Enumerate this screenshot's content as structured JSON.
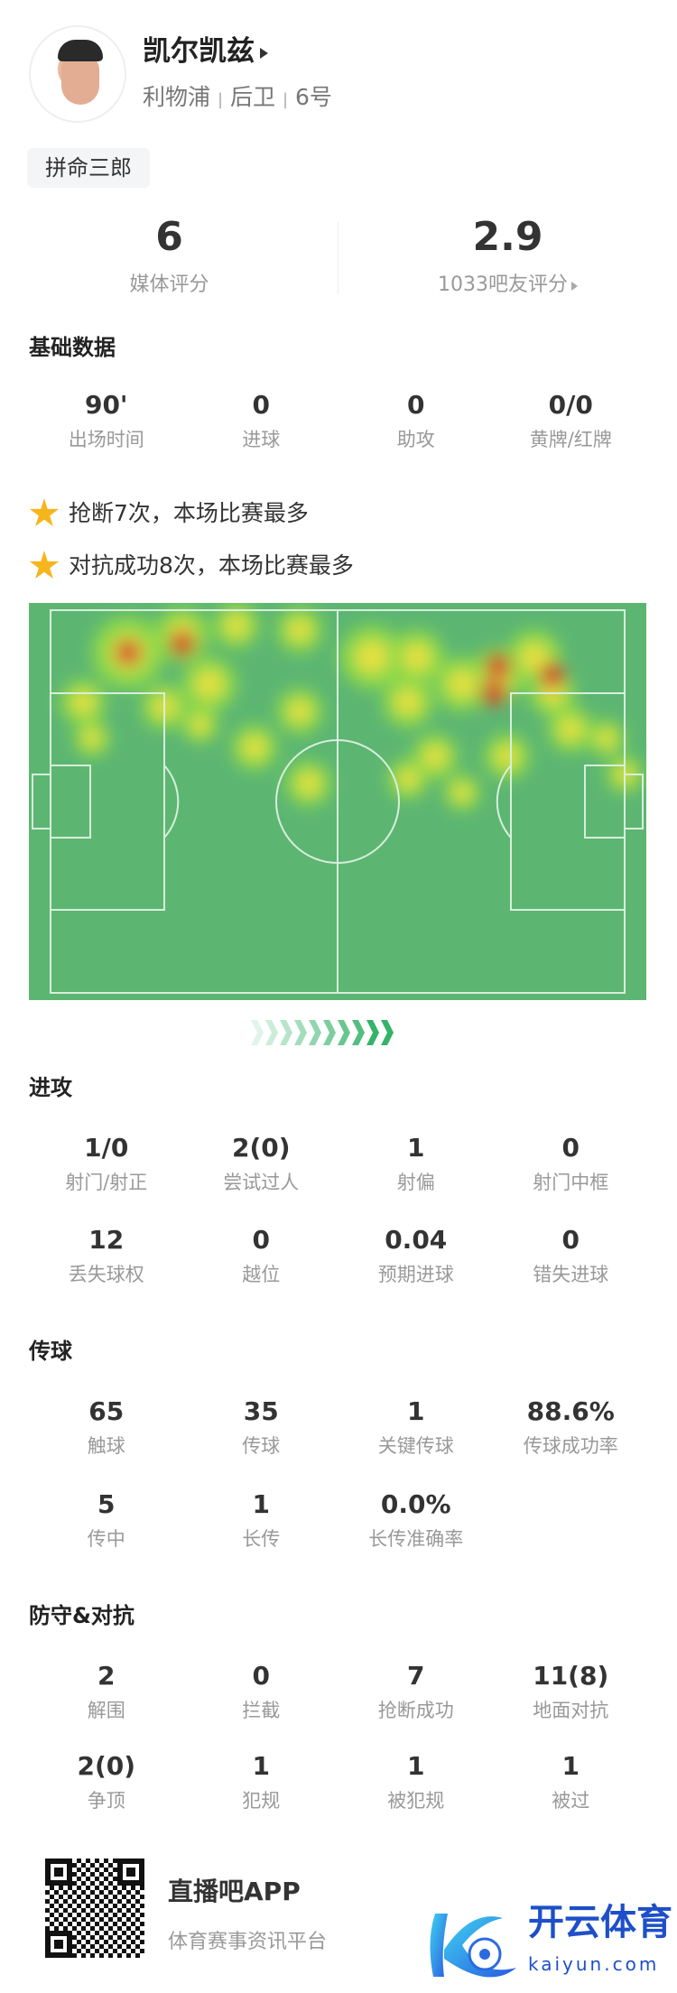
{
  "player": {
    "name": "凯尔凯兹",
    "team": "利物浦",
    "position": "后卫",
    "number": "6号",
    "sep": "|",
    "tag": "拼命三郎"
  },
  "ratings": {
    "media": {
      "value": "6",
      "label": "媒体评分"
    },
    "fans": {
      "value": "2.9",
      "label": "1033吧友评分"
    }
  },
  "basic": {
    "title": "基础数据",
    "items": [
      {
        "v": "90'",
        "l": "出场时间"
      },
      {
        "v": "0",
        "l": "进球"
      },
      {
        "v": "0",
        "l": "助攻"
      },
      {
        "v": "0/0",
        "l": "黄牌/红牌"
      }
    ]
  },
  "highlights": [
    "抢断7次，本场比赛最多",
    "对抗成功8次，本场比赛最多"
  ],
  "attack": {
    "title": "进攻",
    "rows": [
      [
        {
          "v": "1/0",
          "l": "射门/射正"
        },
        {
          "v": "2(0)",
          "l": "尝试过人"
        },
        {
          "v": "1",
          "l": "射偏"
        },
        {
          "v": "0",
          "l": "射门中框"
        }
      ],
      [
        {
          "v": "12",
          "l": "丢失球权"
        },
        {
          "v": "0",
          "l": "越位"
        },
        {
          "v": "0.04",
          "l": "预期进球"
        },
        {
          "v": "0",
          "l": "错失进球"
        }
      ]
    ]
  },
  "passing": {
    "title": "传球",
    "rows": [
      [
        {
          "v": "65",
          "l": "触球"
        },
        {
          "v": "35",
          "l": "传球"
        },
        {
          "v": "1",
          "l": "关键传球"
        },
        {
          "v": "88.6%",
          "l": "传球成功率"
        }
      ],
      [
        {
          "v": "5",
          "l": "传中"
        },
        {
          "v": "1",
          "l": "长传"
        },
        {
          "v": "0.0%",
          "l": "长传准确率"
        }
      ]
    ]
  },
  "defense": {
    "title": "防守&对抗",
    "rows": [
      [
        {
          "v": "2",
          "l": "解围"
        },
        {
          "v": "0",
          "l": "拦截"
        },
        {
          "v": "7",
          "l": "抢断成功"
        },
        {
          "v": "11(8)",
          "l": "地面对抗"
        }
      ],
      [
        {
          "v": "2(0)",
          "l": "争顶"
        },
        {
          "v": "1",
          "l": "犯规"
        },
        {
          "v": "1",
          "l": "被犯规"
        },
        {
          "v": "1",
          "l": "被过"
        }
      ]
    ]
  },
  "footer": {
    "app": "直播吧APP",
    "app_sub": "体育赛事资讯平台",
    "brand": "开云体育",
    "brand_domain": "kaiyun.com"
  },
  "colors": {
    "pitch": "#5cb672",
    "accent": "#35b36b",
    "star": "#f7b51c",
    "brand": "#1e4fc8"
  }
}
